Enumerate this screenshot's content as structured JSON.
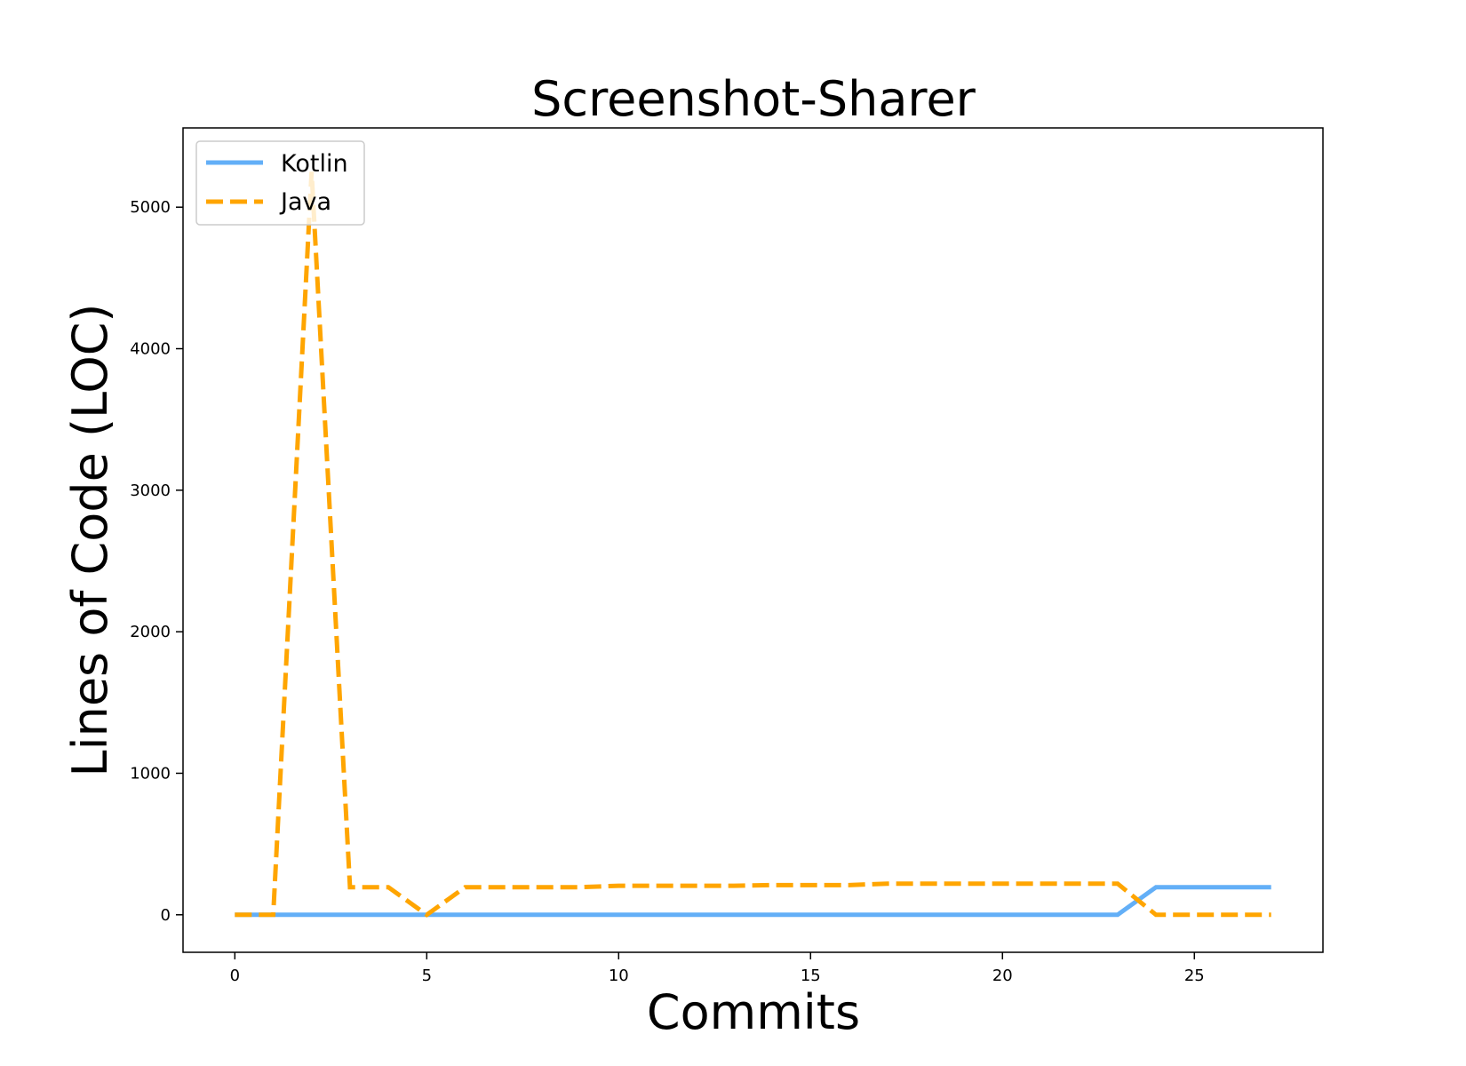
{
  "chart_data": {
    "type": "line",
    "title": "Screenshot-Sharer",
    "xlabel": "Commits",
    "ylabel": "Lines of Code (LOC)",
    "xlim": [
      -1.35,
      28.35
    ],
    "ylim": [
      -265,
      5560
    ],
    "x_ticks": [
      0,
      5,
      10,
      15,
      20,
      25
    ],
    "y_ticks": [
      0,
      1000,
      2000,
      3000,
      4000,
      5000
    ],
    "grid": false,
    "legend_position": "top-left",
    "series": [
      {
        "name": "Kotlin",
        "color": "#63aff7",
        "style": "solid",
        "x": [
          0,
          1,
          2,
          3,
          4,
          5,
          6,
          7,
          8,
          9,
          10,
          11,
          12,
          13,
          14,
          15,
          16,
          17,
          18,
          19,
          20,
          21,
          22,
          23,
          24,
          25,
          26,
          27
        ],
        "values": [
          0,
          0,
          0,
          0,
          0,
          0,
          0,
          0,
          0,
          0,
          0,
          0,
          0,
          0,
          0,
          0,
          0,
          0,
          0,
          0,
          0,
          0,
          0,
          0,
          195,
          195,
          195,
          195
        ]
      },
      {
        "name": "Java",
        "color": "#ffa500",
        "style": "dashed",
        "x": [
          0,
          1,
          2,
          3,
          4,
          5,
          6,
          7,
          8,
          9,
          10,
          11,
          12,
          13,
          14,
          15,
          16,
          17,
          18,
          19,
          20,
          21,
          22,
          23,
          24,
          25,
          26,
          27
        ],
        "values": [
          0,
          0,
          5250,
          195,
          195,
          0,
          195,
          195,
          195,
          195,
          205,
          205,
          205,
          205,
          210,
          210,
          210,
          220,
          220,
          220,
          220,
          220,
          220,
          220,
          0,
          0,
          0,
          0
        ]
      }
    ]
  }
}
